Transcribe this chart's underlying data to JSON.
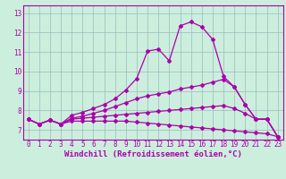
{
  "title": "",
  "xlabel": "Windchill (Refroidissement éolien,°C)",
  "ylabel": "",
  "background_color": "#cceedd",
  "line_color": "#aa00aa",
  "grid_color": "#99bbbb",
  "x_ticks": [
    0,
    1,
    2,
    3,
    4,
    5,
    6,
    7,
    8,
    9,
    10,
    11,
    12,
    13,
    14,
    15,
    16,
    17,
    18,
    19,
    20,
    21,
    22,
    23
  ],
  "y_ticks": [
    7,
    8,
    9,
    10,
    11,
    12,
    13
  ],
  "ylim": [
    6.5,
    13.4
  ],
  "xlim": [
    -0.5,
    23.5
  ],
  "series1": {
    "x": [
      0,
      1,
      2,
      3,
      4,
      5,
      6,
      7,
      8,
      9,
      10,
      11,
      12,
      13,
      14,
      15,
      16,
      17,
      18,
      19,
      20,
      21,
      22,
      23
    ],
    "y": [
      7.55,
      7.3,
      7.5,
      7.3,
      7.75,
      7.9,
      8.1,
      8.3,
      8.6,
      9.05,
      9.65,
      11.05,
      11.15,
      10.55,
      12.35,
      12.55,
      12.3,
      11.65,
      9.75,
      9.2,
      8.3,
      7.55,
      7.55,
      6.65
    ]
  },
  "series2": {
    "x": [
      0,
      1,
      2,
      3,
      4,
      5,
      6,
      7,
      8,
      9,
      10,
      11,
      12,
      13,
      14,
      15,
      16,
      17,
      18,
      19,
      20,
      21,
      22,
      23
    ],
    "y": [
      7.55,
      7.3,
      7.5,
      7.3,
      7.6,
      7.7,
      7.85,
      8.0,
      8.2,
      8.4,
      8.6,
      8.75,
      8.85,
      8.95,
      9.1,
      9.2,
      9.3,
      9.45,
      9.6,
      9.2,
      8.3,
      7.55,
      7.55,
      6.65
    ]
  },
  "series3": {
    "x": [
      0,
      1,
      2,
      3,
      4,
      5,
      6,
      7,
      8,
      9,
      10,
      11,
      12,
      13,
      14,
      15,
      16,
      17,
      18,
      19,
      20,
      21,
      22,
      23
    ],
    "y": [
      7.55,
      7.3,
      7.5,
      7.3,
      7.55,
      7.6,
      7.65,
      7.7,
      7.75,
      7.8,
      7.85,
      7.9,
      7.95,
      8.0,
      8.05,
      8.1,
      8.15,
      8.2,
      8.25,
      8.1,
      7.85,
      7.55,
      7.55,
      6.65
    ]
  },
  "series4": {
    "x": [
      0,
      1,
      2,
      3,
      4,
      5,
      6,
      7,
      8,
      9,
      10,
      11,
      12,
      13,
      14,
      15,
      16,
      17,
      18,
      19,
      20,
      21,
      22,
      23
    ],
    "y": [
      7.55,
      7.3,
      7.5,
      7.3,
      7.45,
      7.45,
      7.45,
      7.45,
      7.45,
      7.45,
      7.4,
      7.35,
      7.3,
      7.25,
      7.2,
      7.15,
      7.1,
      7.05,
      7.0,
      6.95,
      6.9,
      6.85,
      6.8,
      6.65
    ]
  },
  "tick_fontsize": 5.5,
  "xlabel_fontsize": 6.5,
  "linewidth": 0.9,
  "markersize": 2.0
}
